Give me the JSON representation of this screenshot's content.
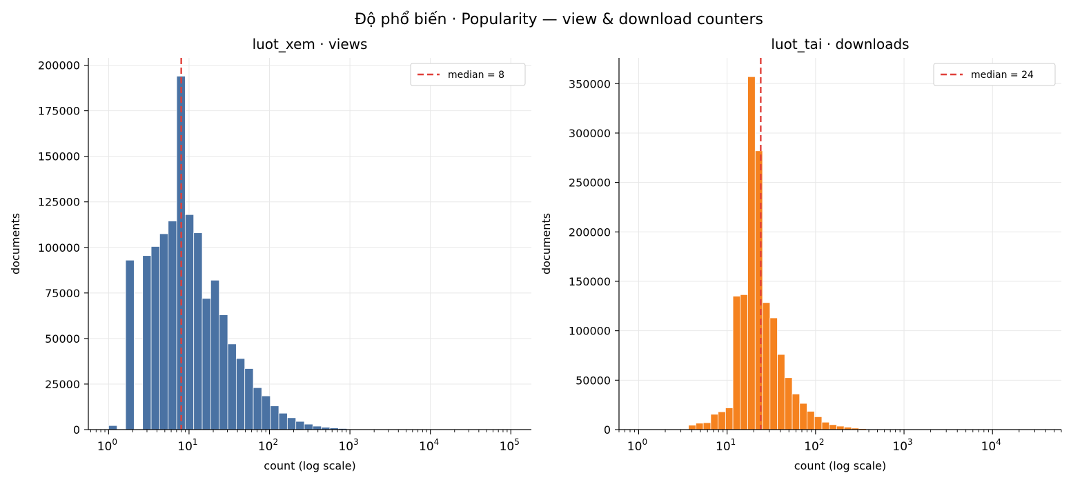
{
  "suptitle": "Độ phổ biến · Popularity — view & download counters",
  "chart_data": [
    {
      "type": "bar",
      "title": "luot_xem · views",
      "xlabel": "count (log scale)",
      "ylabel": "documents",
      "xscale": "log",
      "xlim": [
        0.56,
        180000
      ],
      "ylim": [
        0,
        204000
      ],
      "x_tick_labels": [
        "1",
        "10",
        "100",
        "1000",
        "10000",
        "100000"
      ],
      "y_ticks": [
        0,
        25000,
        50000,
        75000,
        100000,
        125000,
        150000,
        175000,
        200000
      ],
      "grid": true,
      "legend_position": "top-right",
      "median_line": {
        "value": 8,
        "label": "median = 8",
        "color": "#e0403a"
      },
      "bar_color": "#4a72a3",
      "bin_edges": [
        1.0,
        1.276,
        1.628,
        2.077,
        2.65,
        3.381,
        4.314,
        5.504,
        7.022,
        8.958,
        11.43,
        14.58,
        18.6,
        23.74,
        30.28,
        38.64,
        49.3,
        62.89,
        80.24,
        102.4,
        130.6,
        166.6,
        212.6,
        271.2,
        346.1,
        441.5,
        563.3,
        718.7,
        917.0,
        1170.0
      ],
      "values": [
        2200,
        0,
        93000,
        0,
        95500,
        100500,
        107500,
        114500,
        194000,
        118000,
        108000,
        72000,
        82000,
        63000,
        47000,
        39000,
        33500,
        23000,
        18500,
        13000,
        9000,
        6500,
        4500,
        3000,
        1900,
        1300,
        900,
        600,
        300
      ]
    },
    {
      "type": "bar",
      "title": "luot_tai · downloads",
      "xlabel": "count (log scale)",
      "ylabel": "documents",
      "xscale": "log",
      "xlim": [
        0.6,
        60000
      ],
      "ylim": [
        0,
        376000
      ],
      "x_tick_labels": [
        "1",
        "10",
        "100",
        "1000",
        "10000"
      ],
      "y_ticks": [
        0,
        50000,
        100000,
        150000,
        200000,
        250000,
        300000,
        350000
      ],
      "grid": true,
      "legend_position": "top-right",
      "median_line": {
        "value": 24,
        "label": "median = 24",
        "color": "#e0403a"
      },
      "bar_color": "#f5821f",
      "bin_edges": [
        3.66,
        4.44,
        5.38,
        6.53,
        7.92,
        9.6,
        11.64,
        14.12,
        17.12,
        20.76,
        25.18,
        30.54,
        37.03,
        44.91,
        54.47,
        66.06,
        80.12,
        97.16,
        117.84,
        142.9,
        173.3,
        210.2,
        254.9,
        309.2,
        374.9,
        454.7,
        551.5,
        668.8,
        811.0
      ],
      "values": [
        4500,
        6500,
        7000,
        15500,
        18000,
        22000,
        135000,
        136500,
        357000,
        282000,
        128500,
        113000,
        76000,
        52500,
        36000,
        26500,
        18500,
        13000,
        7500,
        5000,
        3500,
        2500,
        1500,
        1000,
        600,
        400,
        250,
        150
      ]
    }
  ]
}
